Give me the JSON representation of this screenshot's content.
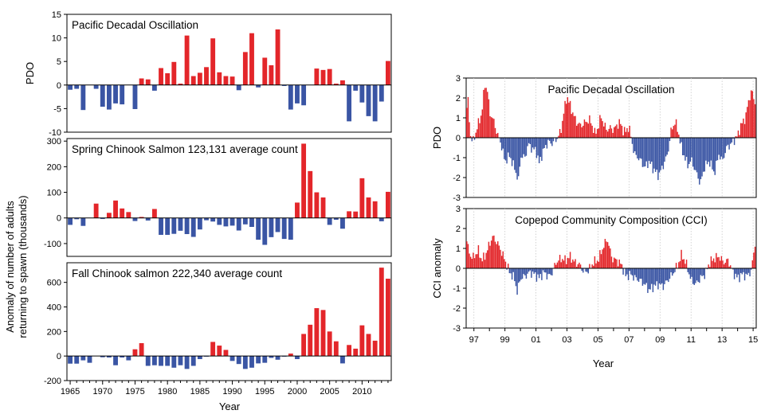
{
  "colors": {
    "positive": "#e3262a",
    "negative": "#3a55a4"
  },
  "left_figure": {
    "xlabel": "Year",
    "shared_ylabel": [
      "Anomaly of number of adults",
      "returning to spawn (thousands)"
    ],
    "x_ticks": [
      "1965",
      "1970",
      "1975",
      "1980",
      "1985",
      "1990",
      "1995",
      "2000",
      "2005",
      "2010"
    ]
  },
  "right_figure": {
    "xlabel": "Year",
    "x_ticks": [
      "97",
      "99",
      "01",
      "03",
      "05",
      "07",
      "09",
      "11",
      "13",
      "15"
    ]
  },
  "chart_data": [
    {
      "id": "pdo_annual",
      "type": "bar",
      "title": "Pacific Decadal Oscillation",
      "ylabel": "PDO",
      "xlabel": "",
      "ylim": [
        -10,
        15
      ],
      "yticks": [
        -10,
        -5,
        0,
        5,
        10,
        15
      ],
      "xlim": [
        1964.5,
        2014.5
      ],
      "grid": false,
      "x": [
        1965,
        1966,
        1967,
        1968,
        1969,
        1970,
        1971,
        1972,
        1973,
        1974,
        1975,
        1976,
        1977,
        1978,
        1979,
        1980,
        1981,
        1982,
        1983,
        1984,
        1985,
        1986,
        1987,
        1988,
        1989,
        1990,
        1991,
        1992,
        1993,
        1994,
        1995,
        1996,
        1997,
        1998,
        1999,
        2000,
        2001,
        2002,
        2003,
        2004,
        2005,
        2006,
        2007,
        2008,
        2009,
        2010,
        2011,
        2012,
        2013,
        2014
      ],
      "values": [
        -1,
        -0.8,
        -5.3,
        0,
        -0.8,
        -4.6,
        -5.2,
        -3.9,
        -4.1,
        0,
        -5.1,
        1.4,
        1.2,
        -1.2,
        3.6,
        2.5,
        4.9,
        0.3,
        10.5,
        1.9,
        2.6,
        3.8,
        9.9,
        2.7,
        1.9,
        1.8,
        -1.1,
        7,
        11,
        -0.5,
        5.8,
        4.2,
        11.8,
        -0.2,
        -5.2,
        -3.9,
        -4.3,
        0,
        3.5,
        3.2,
        3.4,
        0.3,
        1,
        -7.7,
        -1.2,
        -3.7,
        -6.6,
        -7.7,
        -3.5,
        5.1
      ]
    },
    {
      "id": "spring_chinook",
      "type": "bar",
      "title": "Spring Chinook Salmon 123,131 average count",
      "ylabel": "",
      "xlabel": "",
      "ylim": [
        -150,
        310
      ],
      "yticks": [
        -100,
        0,
        100,
        200,
        300
      ],
      "xlim": [
        1964.5,
        2014.5
      ],
      "grid": false,
      "x": [
        1965,
        1966,
        1967,
        1968,
        1969,
        1970,
        1971,
        1972,
        1973,
        1974,
        1975,
        1976,
        1977,
        1978,
        1979,
        1980,
        1981,
        1982,
        1983,
        1984,
        1985,
        1986,
        1987,
        1988,
        1989,
        1990,
        1991,
        1992,
        1993,
        1994,
        1995,
        1996,
        1997,
        1998,
        1999,
        2000,
        2001,
        2002,
        2003,
        2004,
        2005,
        2006,
        2007,
        2008,
        2009,
        2010,
        2011,
        2012,
        2013,
        2014
      ],
      "values": [
        -27,
        -5,
        -31,
        0,
        56,
        -4,
        20,
        68,
        37,
        23,
        -12,
        4,
        -10,
        35,
        -66,
        -66,
        -62,
        -50,
        -63,
        -74,
        -45,
        -9,
        -14,
        -27,
        -33,
        -30,
        -49,
        -25,
        -35,
        -85,
        -105,
        -75,
        -55,
        -82,
        -85,
        60,
        290,
        183,
        100,
        80,
        -27,
        -7,
        -42,
        26,
        25,
        155,
        80,
        65,
        -13,
        102
      ]
    },
    {
      "id": "fall_chinook",
      "type": "bar",
      "title": "Fall Chinook salmon  222,340 average count",
      "ylabel": "",
      "xlabel": "Year",
      "ylim": [
        -200,
        760
      ],
      "yticks": [
        -200,
        0,
        200,
        400,
        600
      ],
      "xlim": [
        1964.5,
        2014.5
      ],
      "grid": false,
      "x": [
        1965,
        1966,
        1967,
        1968,
        1969,
        1970,
        1971,
        1972,
        1973,
        1974,
        1975,
        1976,
        1977,
        1978,
        1979,
        1980,
        1981,
        1982,
        1983,
        1984,
        1985,
        1986,
        1987,
        1988,
        1989,
        1990,
        1991,
        1992,
        1993,
        1994,
        1995,
        1996,
        1997,
        1998,
        1999,
        2000,
        2001,
        2002,
        2003,
        2004,
        2005,
        2006,
        2007,
        2008,
        2009,
        2010,
        2011,
        2012,
        2013,
        2014
      ],
      "values": [
        -62,
        -62,
        -35,
        -55,
        0,
        -10,
        -12,
        -75,
        -12,
        -35,
        55,
        105,
        -80,
        -75,
        -80,
        -80,
        -95,
        -75,
        -105,
        -80,
        -25,
        -5,
        115,
        85,
        50,
        -40,
        -65,
        -105,
        -95,
        -60,
        -55,
        -15,
        -30,
        -5,
        20,
        -25,
        180,
        255,
        390,
        375,
        200,
        120,
        -60,
        90,
        60,
        250,
        180,
        125,
        720,
        630
      ]
    },
    {
      "id": "pdo_monthly",
      "type": "bar",
      "title": "Pacific Decadal Oscillation",
      "ylabel": "PDO",
      "xlabel": "",
      "ylim": [
        -3,
        3
      ],
      "yticks": [
        -3,
        -2,
        -1,
        0,
        1,
        2,
        3
      ],
      "xlim": [
        1996.5,
        2015.2
      ],
      "grid": true,
      "gridlines_x": [
        1997,
        1999,
        2001,
        2003,
        2005,
        2007,
        2009,
        2011,
        2013,
        2015
      ],
      "curve_knots_year": [
        1996.5,
        1996.6,
        1996.75,
        1996.9,
        1997.0,
        1997.2,
        1997.5,
        1997.7,
        1997.9,
        1998.0,
        1998.3,
        1998.5,
        1998.75,
        1999.0,
        1999.3,
        1999.6,
        1999.9,
        2000.0,
        2000.3,
        2000.5,
        2000.8,
        2001.0,
        2001.2,
        2001.5,
        2001.8,
        2002.0,
        2002.3,
        2002.6,
        2002.8,
        2003.0,
        2003.3,
        2003.6,
        2003.9,
        2004.2,
        2004.5,
        2004.8,
        2005.0,
        2005.2,
        2005.4,
        2005.6,
        2005.8,
        2006.0,
        2006.2,
        2006.4,
        2006.6,
        2006.8,
        2007.0,
        2007.2,
        2007.4,
        2007.6,
        2007.8,
        2008.0,
        2008.3,
        2008.6,
        2008.9,
        2009.2,
        2009.5,
        2009.7,
        2009.9,
        2010.0,
        2010.2,
        2010.4,
        2010.6,
        2010.8,
        2011.0,
        2011.3,
        2011.6,
        2011.9,
        2012.2,
        2012.5,
        2012.8,
        2013.0,
        2013.3,
        2013.6,
        2013.8,
        2014.0,
        2014.2,
        2014.5,
        2014.7,
        2014.9,
        2015.1
      ],
      "curve_knots_value": [
        1.0,
        2.2,
        0.3,
        -0.2,
        -0.1,
        0.5,
        1.2,
        2.7,
        2.3,
        1.3,
        0.8,
        0.2,
        -0.3,
        -1.2,
        -0.9,
        -1.5,
        -2.2,
        -0.9,
        -1.0,
        -0.3,
        -0.6,
        -0.6,
        -1.3,
        -0.6,
        -0.2,
        -0.3,
        -0.1,
        0.3,
        1.3,
        2.1,
        1.4,
        0.8,
        0.6,
        0.8,
        0.9,
        0.2,
        0.5,
        1.1,
        0.6,
        0.4,
        0.5,
        0.4,
        0.6,
        0.8,
        0.4,
        0.3,
        0.6,
        -0.3,
        -0.9,
        -1.0,
        -1.2,
        -1.5,
        -1.2,
        -1.6,
        -1.9,
        -1.4,
        -0.8,
        0.3,
        0.7,
        0.8,
        0.2,
        -0.6,
        -1.0,
        -1.4,
        -1.1,
        -1.7,
        -2.3,
        -1.4,
        -1.2,
        -1.8,
        -0.8,
        -1.2,
        -0.5,
        -0.3,
        -0.1,
        0.1,
        0.6,
        1.0,
        1.8,
        2.4,
        1.8
      ]
    },
    {
      "id": "copepod_cci",
      "type": "bar",
      "title": "Copepod Community Composition (CCI)",
      "ylabel": "CCI anomaly",
      "xlabel": "Year",
      "ylim": [
        -3,
        3
      ],
      "yticks": [
        -3,
        -2,
        -1,
        0,
        1,
        2,
        3
      ],
      "xlim": [
        1996.5,
        2015.2
      ],
      "grid": true,
      "gridlines_x": [
        1997,
        1999,
        2001,
        2003,
        2005,
        2007,
        2009,
        2011,
        2013,
        2015
      ],
      "curve_knots_year": [
        1996.5,
        1996.7,
        1996.9,
        1997.1,
        1997.3,
        1997.5,
        1997.7,
        1997.9,
        1998.2,
        1998.5,
        1998.8,
        1999.0,
        1999.3,
        1999.6,
        1999.8,
        2000.0,
        2000.3,
        2000.6,
        2000.9,
        2001.2,
        2001.5,
        2001.8,
        2002.0,
        2002.3,
        2002.6,
        2002.9,
        2003.2,
        2003.5,
        2003.8,
        2004.1,
        2004.4,
        2004.7,
        2005.0,
        2005.3,
        2005.6,
        2005.9,
        2006.2,
        2006.5,
        2006.8,
        2007.1,
        2007.4,
        2007.7,
        2008.0,
        2008.3,
        2008.6,
        2008.9,
        2009.2,
        2009.5,
        2009.8,
        2010.1,
        2010.4,
        2010.7,
        2011.0,
        2011.3,
        2011.6,
        2011.9,
        2012.2,
        2012.5,
        2012.8,
        2013.1,
        2013.4,
        2013.7,
        2014.0,
        2014.3,
        2014.6,
        2014.9,
        2015.1
      ],
      "curve_knots_value": [
        1.5,
        0.8,
        0.5,
        0.7,
        0.9,
        0.4,
        0.6,
        1.0,
        1.6,
        1.3,
        0.8,
        0.4,
        -0.2,
        -0.5,
        -1.2,
        -0.5,
        -0.4,
        -0.2,
        -0.3,
        -0.5,
        -0.2,
        -0.4,
        -0.3,
        0.3,
        0.5,
        0.4,
        0.6,
        0.3,
        0.2,
        -0.2,
        -0.1,
        0.3,
        0.4,
        1.0,
        1.5,
        0.5,
        0.4,
        0.2,
        -0.4,
        -0.3,
        -0.5,
        -0.6,
        -0.8,
        -1.1,
        -0.9,
        -0.8,
        -0.9,
        -0.6,
        -0.3,
        0.1,
        0.7,
        0.2,
        -0.6,
        -0.8,
        -0.5,
        -0.3,
        0.3,
        0.5,
        0.6,
        0.3,
        0.4,
        -0.2,
        -0.5,
        -0.3,
        -0.4,
        -0.1,
        1.2
      ]
    }
  ]
}
